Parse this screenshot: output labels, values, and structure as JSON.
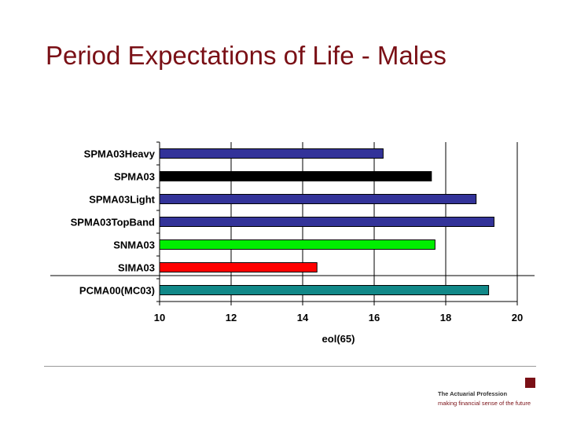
{
  "slide": {
    "title": "Period Expectations of Life - Males"
  },
  "chart_data": {
    "type": "bar",
    "orientation": "horizontal",
    "title": "",
    "xlabel": "eol(65)",
    "ylabel": "",
    "xlim": [
      10,
      20
    ],
    "xticks": [
      10,
      12,
      14,
      16,
      18,
      20
    ],
    "grid": "vertical",
    "categories": [
      "SPMA03Heavy",
      "SPMA03",
      "SPMA03Light",
      "SPMA03TopBand",
      "SNMA03",
      "SIMA03",
      "PCMA00(MC03)"
    ],
    "values": [
      16.25,
      17.6,
      18.85,
      19.35,
      17.7,
      14.4,
      19.2
    ],
    "colors": [
      "#333399",
      "#000000",
      "#333399",
      "#333399",
      "#00ee00",
      "#ff0000",
      "#118888"
    ]
  },
  "footer": {
    "org_name": "The Actuarial Profession",
    "tagline": "making financial sense of the future",
    "brand_color": "#7a1016"
  }
}
